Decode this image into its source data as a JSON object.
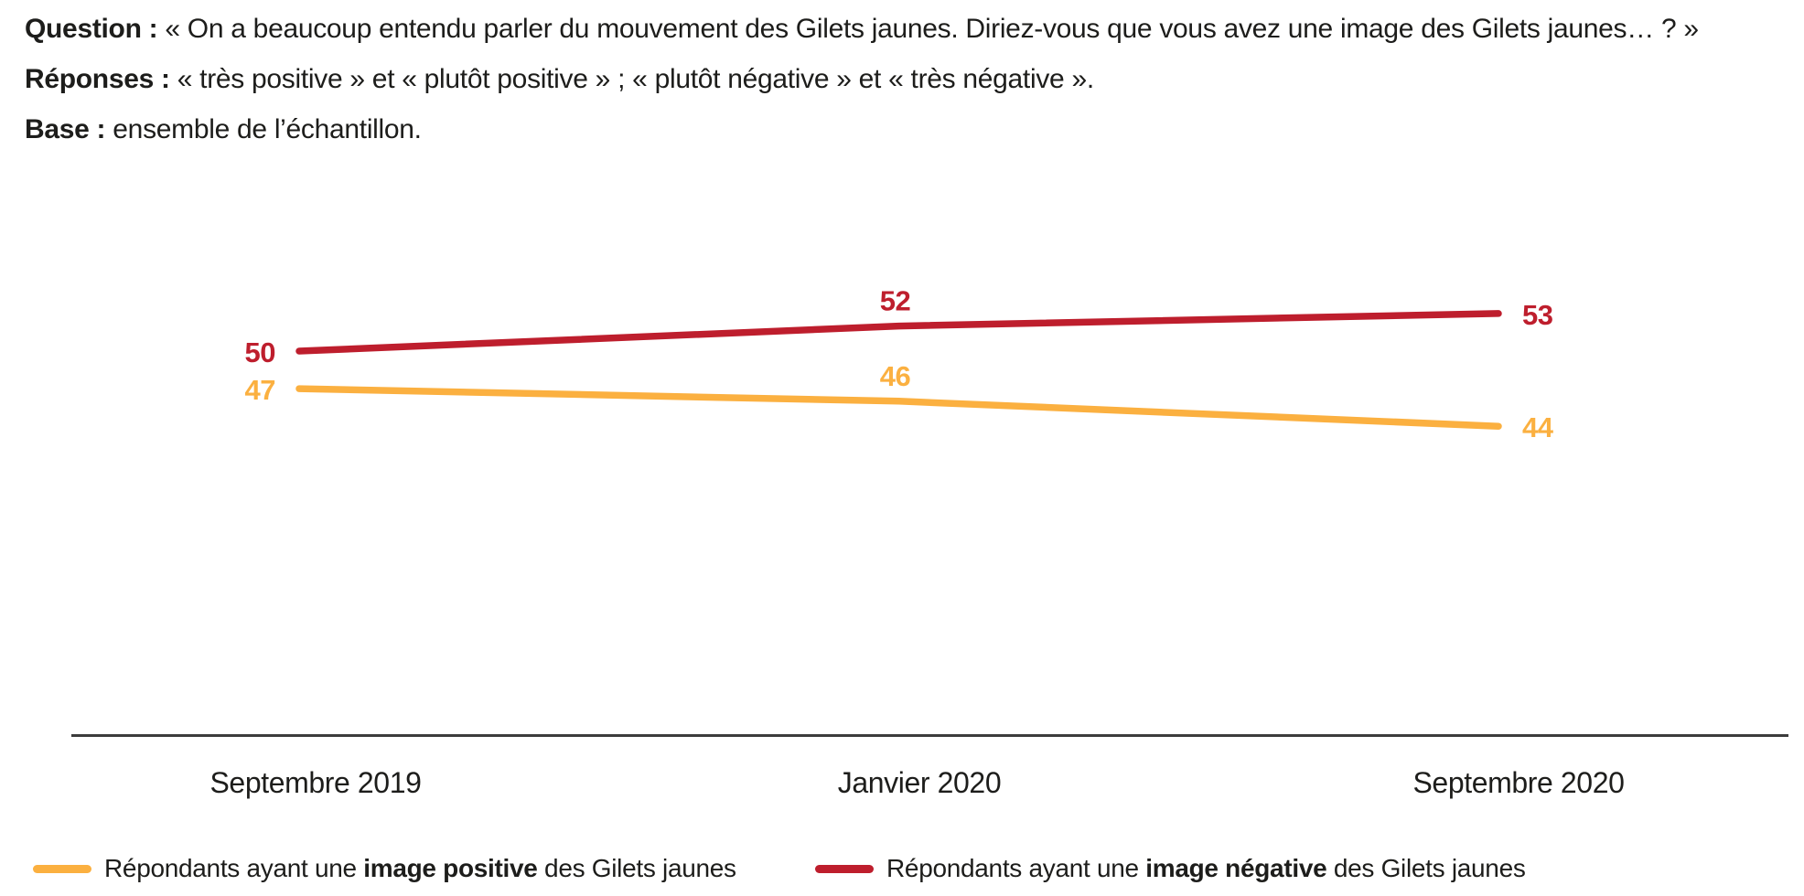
{
  "header": {
    "question_label": "Question :",
    "question_text": "« On a beaucoup entendu parler du mouvement des Gilets jaunes. Diriez-vous que vous avez une image des Gilets jaunes… ? »",
    "responses_label": "Réponses :",
    "responses_text": "« très positive » et « plutôt positive » ; « plutôt négative » et « très négative ».",
    "base_label": "Base :",
    "base_text": "ensemble de l’échantillon."
  },
  "chart_data": {
    "type": "line",
    "categories": [
      "Septembre 2019",
      "Janvier 2020",
      "Septembre 2020"
    ],
    "series": [
      {
        "name": "Répondants ayant une image positive des Gilets jaunes",
        "values": [
          47,
          46,
          44
        ],
        "color": "#FBB040"
      },
      {
        "name": "Répondants ayant une image négative des Gilets jaunes",
        "values": [
          50,
          52,
          53
        ],
        "color": "#BE1E2D"
      }
    ],
    "data_labels": true,
    "ylim": [
      40,
      58
    ],
    "grid": false,
    "legend_position": "bottom",
    "axis_color": "#3C3C3C",
    "text_color": "#1D1D1B"
  },
  "legend": {
    "items": [
      {
        "prefix": "Répondants ayant une ",
        "bold": "image positive",
        "suffix": " des Gilets jaunes"
      },
      {
        "prefix": "Répondants ayant une ",
        "bold": "image négative",
        "suffix": " des Gilets jaunes"
      }
    ]
  }
}
